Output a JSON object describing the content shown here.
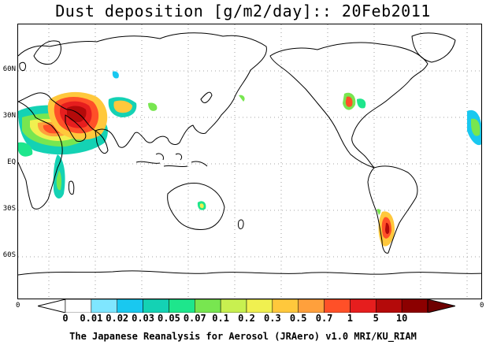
{
  "title": "Dust deposition [g/m2/day]:: 20Feb2011",
  "credit": "The Japanese Reanalysis for Aerosol (JRAero) v1.0 MRI/KU_RIAM",
  "lat_labels": [
    "60N",
    "30N",
    "EQ",
    "30S",
    "60S"
  ],
  "corner_labels": [
    "0",
    "0"
  ],
  "colorbar": {
    "labels": [
      "0",
      "0.01",
      "0.02",
      "0.03",
      "0.05",
      "0.07",
      "0.1",
      "0.2",
      "0.3",
      "0.5",
      "0.7",
      "1",
      "5",
      "10"
    ],
    "colors": [
      "#ffffff",
      "#ffffff",
      "#7fe6ff",
      "#19c8f0",
      "#14d2b4",
      "#1ee68c",
      "#78e650",
      "#c8f050",
      "#f0f050",
      "#ffc83c",
      "#ffa03c",
      "#ff5028",
      "#e61e1e",
      "#b40a0a",
      "#8c0000",
      "#6e0000"
    ]
  },
  "dust_regions": [
    {
      "name": "sahara-arabia-core",
      "level": 11
    },
    {
      "name": "north-africa-broad",
      "level": 4
    },
    {
      "name": "central-asia",
      "level": 5
    },
    {
      "name": "east-africa",
      "level": 3
    },
    {
      "name": "australia",
      "level": 6
    },
    {
      "name": "north-america",
      "level": 8
    },
    {
      "name": "patagonia",
      "level": 9
    },
    {
      "name": "west-africa-atlantic",
      "level": 3
    }
  ]
}
